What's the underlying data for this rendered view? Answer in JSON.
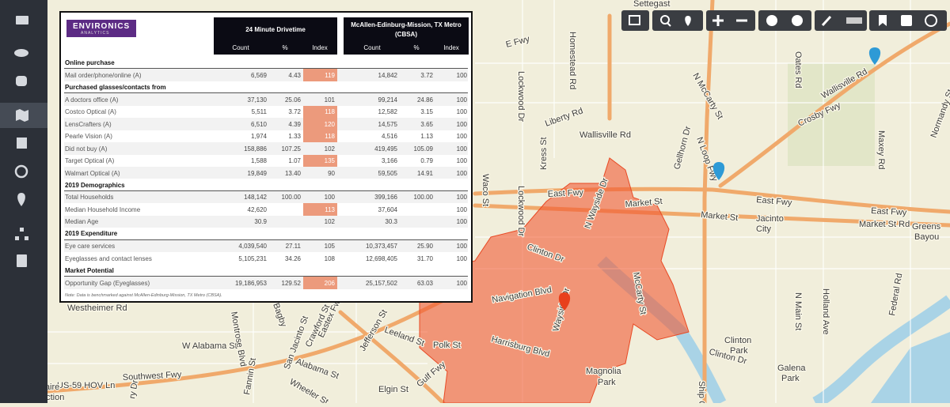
{
  "logo": {
    "name": "ENVIRONICS",
    "sub": "ANALYTICS"
  },
  "table": {
    "groups": [
      "24 Minute Drivetime",
      "McAllen-Edinburg-Mission, TX Metro (CBSA)"
    ],
    "columns": [
      "Count",
      "%",
      "Index",
      "Count",
      "%",
      "Index"
    ],
    "sections": [
      {
        "title": "Online purchase",
        "rows": [
          {
            "label": "Mail order/phone/online (A)",
            "cells": [
              "6,569",
              "4.43",
              "119",
              "14,842",
              "3.72",
              "100"
            ],
            "highlight": true
          }
        ]
      },
      {
        "title": "Purchased glasses/contacts from",
        "rows": [
          {
            "label": "A doctors office (A)",
            "cells": [
              "37,130",
              "25.06",
              "101",
              "99,214",
              "24.86",
              "100"
            ]
          },
          {
            "label": "Costco Optical (A)",
            "cells": [
              "5,511",
              "3.72",
              "118",
              "12,582",
              "3.15",
              "100"
            ],
            "highlight": true
          },
          {
            "label": "LensCrafters (A)",
            "cells": [
              "6,510",
              "4.39",
              "120",
              "14,575",
              "3.65",
              "100"
            ],
            "highlight": true
          },
          {
            "label": "Pearle Vision (A)",
            "cells": [
              "1,974",
              "1.33",
              "118",
              "4,516",
              "1.13",
              "100"
            ],
            "highlight": true
          },
          {
            "label": "Did not buy (A)",
            "cells": [
              "158,886",
              "107.25",
              "102",
              "419,495",
              "105.09",
              "100"
            ]
          },
          {
            "label": "Target Optical (A)",
            "cells": [
              "1,588",
              "1.07",
              "135",
              "3,166",
              "0.79",
              "100"
            ],
            "highlight": true
          },
          {
            "label": "Walmart Optical (A)",
            "cells": [
              "19,849",
              "13.40",
              "90",
              "59,505",
              "14.91",
              "100"
            ]
          }
        ]
      },
      {
        "title": "2019 Demographics",
        "rows": [
          {
            "label": "Total Households",
            "cells": [
              "148,142",
              "100.00",
              "100",
              "399,166",
              "100.00",
              "100"
            ]
          },
          {
            "label": "Median Household Income",
            "cells": [
              "42,620",
              null,
              "113",
              "37,604",
              null,
              "100"
            ],
            "highlight": true
          },
          {
            "label": "Median Age",
            "cells": [
              "30.9",
              null,
              "102",
              "30.3",
              null,
              "100"
            ]
          }
        ]
      },
      {
        "title": "2019 Expenditure",
        "rows": [
          {
            "label": "Eye care services",
            "cells": [
              "4,039,540",
              "27.11",
              "105",
              "10,373,457",
              "25.90",
              "100"
            ]
          },
          {
            "label": "Eyeglasses and contact lenses",
            "cells": [
              "5,105,231",
              "34.26",
              "108",
              "12,698,405",
              "31.70",
              "100"
            ]
          }
        ]
      },
      {
        "title": "Market Potential",
        "rows": [
          {
            "label": "Opportunity Gap (Eyeglasses)",
            "cells": [
              "19,186,953",
              "129.52",
              "206",
              "25,157,502",
              "63.03",
              "100"
            ],
            "highlight": true
          }
        ]
      }
    ],
    "note": "Note: Data is benchmarked against McAllen-Edinburg-Mission, TX Metro (CBSA)."
  },
  "map": {
    "labels": [
      "Settegast",
      "Wallisville Rd",
      "Crosby Fwy",
      "Maxey Rd",
      "Normandy St",
      "Oates Rd",
      "N McCarty St",
      "Homestead Rd",
      "Lockwood Dr",
      "Liberty Rd",
      "Wallisville Rd",
      "N Loop Fwy",
      "Gellhorn Dr",
      "Kress St",
      "Waco St",
      "Lockwood Dr",
      "East Fwy",
      "Market St",
      "Market St",
      "East Fwy",
      "East Fwy",
      "Jacinto",
      "City",
      "Greens",
      "Bayou",
      "Market St Rd",
      "N Wayside Dr",
      "McCarty St",
      "Clinton Dr",
      "Navigation Blvd",
      "Wayside Dr",
      "Harrisburg Blvd",
      "Polk St",
      "Magnolia",
      "Park",
      "Clinton",
      "Park",
      "Galena",
      "Park",
      "Holland Ave",
      "N Main St",
      "Federal Rd",
      "Ship Ch",
      "Clinton Dr",
      "Westheimer Rd",
      "W Alabama St",
      "Montrose Blvd",
      "US-59 HOV Ln",
      "Southwest Fwy",
      "Bagby",
      "San Jacinto St",
      "Crawford St",
      "Eastex Fwy",
      "Leeland St",
      "Jefferson St",
      "Alabama St",
      "Wheeler St",
      "Gulf Fwy",
      "Elgin St",
      "Fannin St",
      "llaire",
      "nction",
      "ry Dr",
      "E Fwy"
    ]
  }
}
